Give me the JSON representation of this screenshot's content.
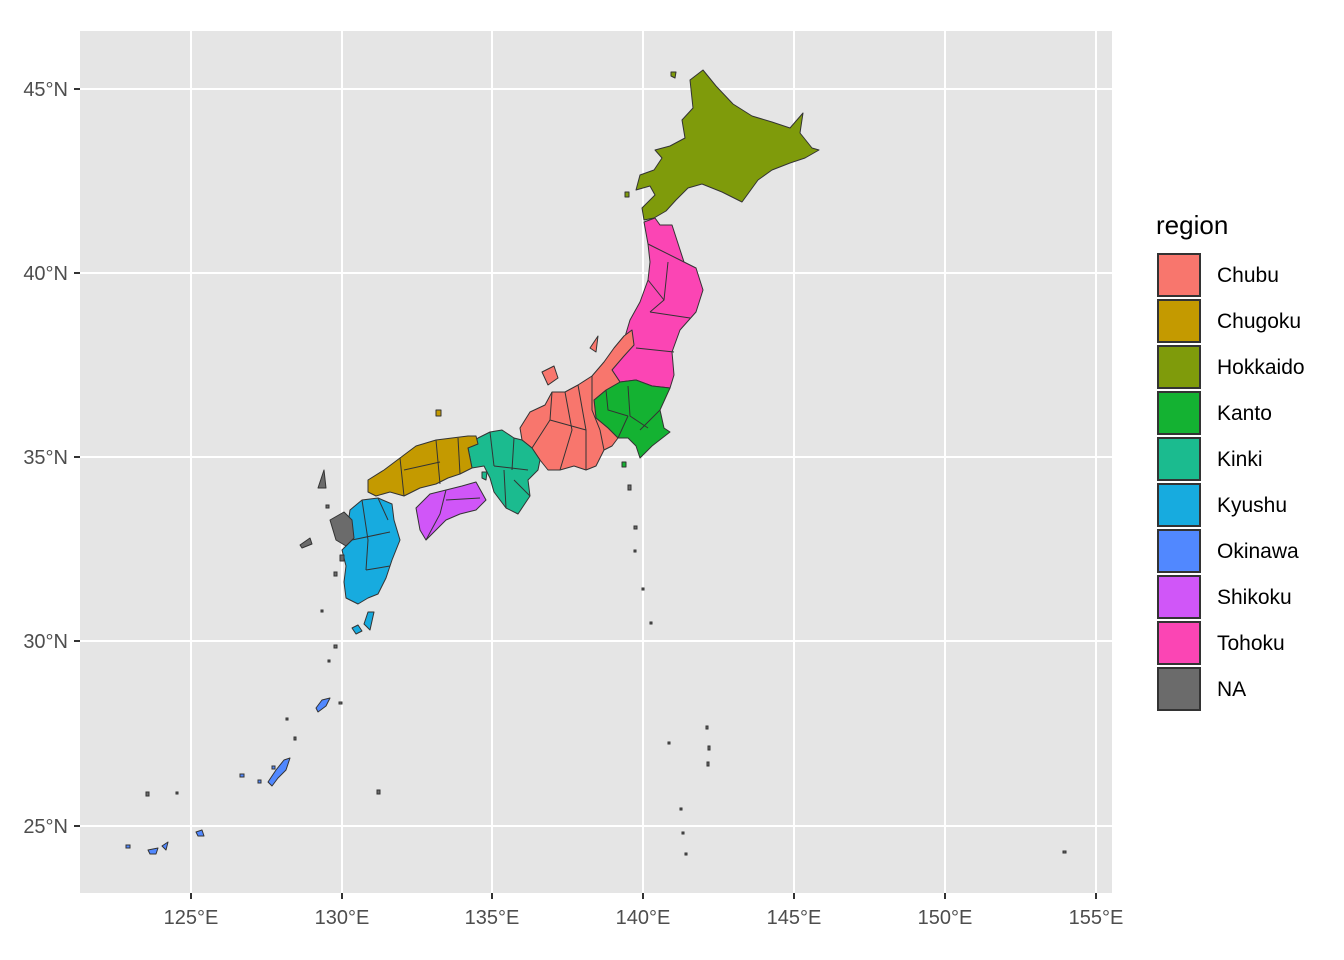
{
  "chart_data": {
    "type": "choropleth",
    "legend_title": "region",
    "legend_position": "right",
    "grid": true,
    "x_axis": {
      "ticks": [
        125,
        130,
        135,
        140,
        145,
        150,
        155
      ],
      "tick_labels": [
        "125°E",
        "130°E",
        "135°E",
        "140°E",
        "145°E",
        "150°E",
        "155°E"
      ],
      "range": [
        122.7,
        155.5
      ]
    },
    "y_axis": {
      "ticks": [
        25,
        30,
        35,
        40,
        45
      ],
      "tick_labels": [
        "25°N",
        "30°N",
        "35°N",
        "40°N",
        "45°N"
      ],
      "range": [
        23.2,
        46.6
      ]
    },
    "regions": [
      {
        "name": "Chubu",
        "color": "#F8766D"
      },
      {
        "name": "Chugoku",
        "color": "#C49A00"
      },
      {
        "name": "Hokkaido",
        "color": "#7F9B0B"
      },
      {
        "name": "Kanto",
        "color": "#14B232"
      },
      {
        "name": "Kinki",
        "color": "#1BBB8F"
      },
      {
        "name": "Kyushu",
        "color": "#17ABDF"
      },
      {
        "name": "Okinawa",
        "color": "#5188FF"
      },
      {
        "name": "Shikoku",
        "color": "#D056F8"
      },
      {
        "name": "Tohoku",
        "color": "#FB45B4"
      },
      {
        "name": "NA",
        "color": "#6B6B6B"
      }
    ]
  }
}
